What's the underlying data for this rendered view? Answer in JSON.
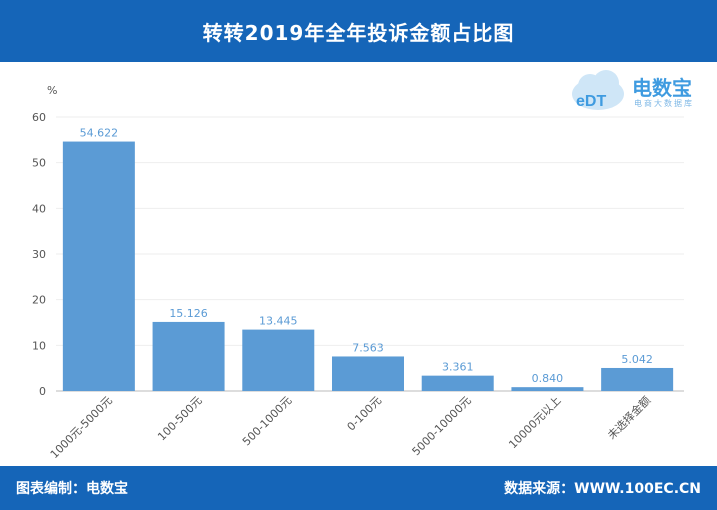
{
  "header": {
    "title": "转转2019年全年投诉金额占比图"
  },
  "footer": {
    "left": "图表编制：电数宝",
    "right": "数据来源：WWW.100EC.CN"
  },
  "logo": {
    "mark": "eDT",
    "brand": "电数宝",
    "tagline": "电商大数据库"
  },
  "chart_data": {
    "type": "bar",
    "title": "转转2019年全年投诉金额占比图",
    "ylabel": "%",
    "xlabel": "",
    "ylim": [
      0,
      60
    ],
    "yticks": [
      0,
      10,
      20,
      30,
      40,
      50,
      60
    ],
    "categories": [
      "1000元-5000元",
      "100-500元",
      "500-1000元",
      "0-100元",
      "5000-10000元",
      "10000元以上",
      "未选择金额"
    ],
    "values": [
      54.622,
      15.126,
      13.445,
      7.563,
      3.361,
      0.84,
      5.042
    ],
    "value_labels": [
      "54.622",
      "15.126",
      "13.445",
      "7.563",
      "3.361",
      "0.840",
      "5.042"
    ],
    "bar_color": "#5b9bd5",
    "grid": true,
    "legend": "none"
  }
}
